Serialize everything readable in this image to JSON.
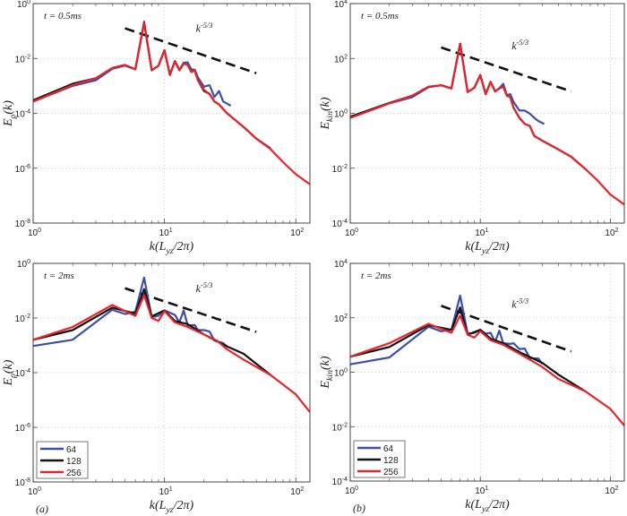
{
  "colors": {
    "64": "#3a4fa8",
    "128": "#111111",
    "256": "#e8242a",
    "reference": "#111111",
    "grid": "#bbbbbb"
  },
  "chart_data": [
    {
      "type": "line",
      "panel_label": "",
      "annotation": "t = 0.5ms",
      "slope_label": "k^{-5/3}",
      "xlabel": "k(L_{yz}/2π)",
      "ylabel": "E_{ρ}(k)",
      "xscale": "log",
      "yscale": "log",
      "xlim": [
        1,
        128
      ],
      "ylim": [
        1e-08,
        1
      ],
      "xticks": [
        1,
        10,
        100
      ],
      "yticks": [
        1e-08,
        1e-06,
        0.0001,
        0.01,
        1
      ],
      "grid": true,
      "legend": null,
      "series": [
        {
          "name": "64",
          "x": [
            1,
            2,
            3,
            4,
            5,
            6,
            7,
            8,
            9,
            10,
            11,
            12,
            13,
            14,
            15,
            16,
            17,
            18,
            20,
            22,
            24,
            26,
            28,
            32
          ],
          "y": [
            0.00027,
            0.001,
            0.0016,
            0.0042,
            0.0055,
            0.004,
            0.22,
            0.0037,
            0.0054,
            0.02,
            0.0026,
            0.0081,
            0.0039,
            0.007,
            0.0072,
            0.004,
            0.0039,
            0.002,
            0.00093,
            0.00107,
            0.00039,
            0.00065,
            0.00027,
            0.00019
          ]
        },
        {
          "name": "128",
          "x": [
            1,
            2,
            3,
            4,
            5,
            6,
            7,
            8,
            9,
            10,
            11,
            12,
            13,
            14,
            15,
            16,
            17,
            18,
            20,
            22,
            24,
            26,
            30,
            40,
            50,
            64
          ],
          "y": [
            0.0003,
            0.0012,
            0.0019,
            0.0045,
            0.0058,
            0.004,
            0.2,
            0.0037,
            0.0054,
            0.02,
            0.0025,
            0.0081,
            0.0037,
            0.0065,
            0.0058,
            0.0032,
            0.0037,
            0.00155,
            0.00065,
            0.00052,
            0.00027,
            0.00021,
            0.0001,
            3.2e-05,
            1.2e-05,
            5.3e-06
          ]
        },
        {
          "name": "256",
          "x": [
            1,
            2,
            3,
            4,
            5,
            6,
            7,
            8,
            9,
            10,
            11,
            12,
            13,
            14,
            15,
            16,
            17,
            18,
            20,
            22,
            24,
            26,
            30,
            40,
            50,
            64,
            80,
            100,
            128
          ],
          "y": [
            0.00027,
            0.00107,
            0.0019,
            0.0045,
            0.0058,
            0.004,
            0.2,
            0.0037,
            0.0054,
            0.02,
            0.0025,
            0.0081,
            0.0037,
            0.0065,
            0.0058,
            0.0032,
            0.0037,
            0.00155,
            0.00072,
            0.0005,
            0.00027,
            0.00021,
            0.0001,
            3.2e-05,
            1.2e-05,
            5e-06,
            1.66e-06,
            6e-07,
            2.6e-07
          ]
        }
      ],
      "reference_line": {
        "x": [
          5,
          50
        ],
        "y": [
          0.126,
          0.0029
        ]
      }
    },
    {
      "type": "line",
      "panel_label": "",
      "annotation": "t = 0.5ms",
      "slope_label": "k^{-5/3}",
      "xlabel": "k(L_{yz}/2π)",
      "ylabel": "E_{kin}(k)",
      "xscale": "log",
      "yscale": "log",
      "xlim": [
        1,
        128
      ],
      "ylim": [
        0.0001,
        10000.0
      ],
      "xticks": [
        1,
        10,
        100
      ],
      "yticks": [
        0.0001,
        0.01,
        1,
        100.0,
        10000.0
      ],
      "grid": true,
      "legend": null,
      "series": [
        {
          "name": "64",
          "x": [
            1,
            2,
            3,
            4,
            5,
            6,
            7,
            8,
            9,
            10,
            11,
            12,
            13,
            14,
            15,
            16,
            17,
            18,
            20,
            22,
            24,
            26,
            28,
            31
          ],
          "y": [
            0.68,
            2.3,
            3.9,
            9.0,
            10.5,
            8.1,
            347,
            6.0,
            8.5,
            25,
            5.0,
            14,
            6.3,
            8.1,
            12,
            4.6,
            5.0,
            2.6,
            1.26,
            1.26,
            0.98,
            0.68,
            0.52,
            0.41
          ]
        },
        {
          "name": "128",
          "x": [
            1,
            2,
            3,
            4,
            5,
            6,
            7,
            8,
            9,
            10,
            11,
            12,
            13,
            14,
            15,
            16,
            17,
            18,
            20,
            22,
            24,
            26,
            30,
            40,
            50,
            64
          ],
          "y": [
            0.75,
            2.4,
            4.4,
            9.3,
            10.5,
            8.1,
            347,
            6.0,
            8.5,
            25,
            5.0,
            14,
            6.3,
            8.1,
            9.3,
            4.4,
            3.9,
            1.6,
            0.68,
            0.41,
            0.35,
            0.15,
            0.1,
            0.048,
            0.026,
            0.0095
          ]
        },
        {
          "name": "256",
          "x": [
            1,
            2,
            3,
            4,
            5,
            6,
            7,
            8,
            9,
            10,
            11,
            12,
            13,
            14,
            15,
            16,
            17,
            18,
            20,
            22,
            24,
            26,
            30,
            40,
            50,
            64,
            80,
            100,
            128
          ],
          "y": [
            0.68,
            2.3,
            4.4,
            9.3,
            10.5,
            8.1,
            347,
            6.0,
            8.5,
            25,
            5.0,
            14,
            6.3,
            8.1,
            9.3,
            4.4,
            3.9,
            1.6,
            0.68,
            0.41,
            0.35,
            0.15,
            0.1,
            0.048,
            0.026,
            0.0095,
            0.0035,
            0.0011,
            0.00047
          ]
        }
      ],
      "reference_line": {
        "x": [
          5,
          50
        ],
        "y": [
          251,
          6.3
        ]
      }
    },
    {
      "type": "line",
      "panel_label": "(a)",
      "annotation": "t = 2ms",
      "slope_label": "k^{-5/3}",
      "xlabel": "k(L_{yz}/2π)",
      "ylabel": "E_{ρ}(k)",
      "xscale": "log",
      "yscale": "log",
      "xlim": [
        1,
        128
      ],
      "ylim": [
        1e-08,
        1
      ],
      "xticks": [
        1,
        10,
        100
      ],
      "yticks": [
        1e-08,
        1e-06,
        0.0001,
        0.01,
        1
      ],
      "grid": true,
      "legend": "bottom-left",
      "series": [
        {
          "name": "64",
          "x": [
            1,
            2,
            4,
            5,
            6,
            7,
            8,
            9,
            10,
            12,
            13,
            14,
            15,
            17,
            18,
            20,
            22,
            24,
            28,
            30
          ],
          "y": [
            0.00095,
            0.0016,
            0.02,
            0.014,
            0.017,
            0.3,
            0.0107,
            0.012,
            0.019,
            0.013,
            0.0069,
            0.019,
            0.0054,
            0.0055,
            0.0036,
            0.0036,
            0.0032,
            0.0015,
            0.0012,
            0.0009
          ]
        },
        {
          "name": "128",
          "x": [
            1,
            2,
            4,
            6,
            7,
            8,
            10,
            12,
            15,
            20,
            30,
            40,
            64
          ],
          "y": [
            0.0016,
            0.0036,
            0.024,
            0.0145,
            0.115,
            0.0115,
            0.019,
            0.0078,
            0.006,
            0.0025,
            0.00091,
            0.00049,
            8.3e-05
          ]
        },
        {
          "name": "256",
          "x": [
            1,
            2,
            4,
            6,
            7,
            8,
            9,
            10,
            12,
            15,
            20,
            25,
            30,
            40,
            64,
            100,
            128
          ],
          "y": [
            0.0016,
            0.0047,
            0.03,
            0.012,
            0.069,
            0.01,
            0.0078,
            0.018,
            0.0069,
            0.0047,
            0.0025,
            0.0015,
            0.00071,
            0.0003,
            8.3e-05,
            1.6e-05,
            3.6e-06
          ]
        }
      ],
      "reference_line": {
        "x": [
          5,
          50
        ],
        "y": [
          0.123,
          0.0031
        ]
      }
    },
    {
      "type": "line",
      "panel_label": "(b)",
      "annotation": "t = 2ms",
      "slope_label": "k^{-5/3}",
      "xlabel": "k(L_{yz}/2π)",
      "ylabel": "E_{kin}(k)",
      "xscale": "log",
      "yscale": "log",
      "xlim": [
        1,
        128
      ],
      "ylim": [
        0.0001,
        10000.0
      ],
      "xticks": [
        1,
        10,
        100
      ],
      "yticks": [
        0.0001,
        0.01,
        1,
        100.0,
        10000.0
      ],
      "grid": true,
      "legend": "bottom-left",
      "series": [
        {
          "name": "64",
          "x": [
            1,
            2,
            4,
            5,
            6,
            7,
            8,
            9,
            10,
            11,
            12,
            13,
            14,
            15,
            17,
            18,
            20,
            22,
            24,
            28,
            30
          ],
          "y": [
            1.95,
            3.5,
            47,
            32,
            36,
            660,
            26,
            28,
            36,
            26,
            28,
            13,
            34,
            11.7,
            11,
            11.7,
            7.1,
            7.4,
            3.3,
            3.2,
            2.0
          ]
        },
        {
          "name": "128",
          "x": [
            1,
            2,
            4,
            6,
            7,
            8,
            10,
            12,
            15,
            20,
            30,
            40,
            64
          ],
          "y": [
            3.7,
            8.5,
            54,
            36,
            240,
            24,
            36,
            17,
            11.7,
            5.5,
            2.2,
            0.81,
            0.2
          ]
        },
        {
          "name": "256",
          "x": [
            1,
            2,
            4,
            6,
            7,
            8,
            9,
            10,
            12,
            15,
            20,
            25,
            30,
            40,
            64,
            100,
            128
          ],
          "y": [
            3.7,
            11.7,
            60,
            28,
            120,
            24,
            18.6,
            32,
            15,
            10.2,
            4.8,
            2.6,
            1.55,
            0.56,
            0.2,
            0.045,
            0.011
          ]
        }
      ],
      "reference_line": {
        "x": [
          5,
          50
        ],
        "y": [
          275,
          5.8
        ]
      }
    }
  ]
}
